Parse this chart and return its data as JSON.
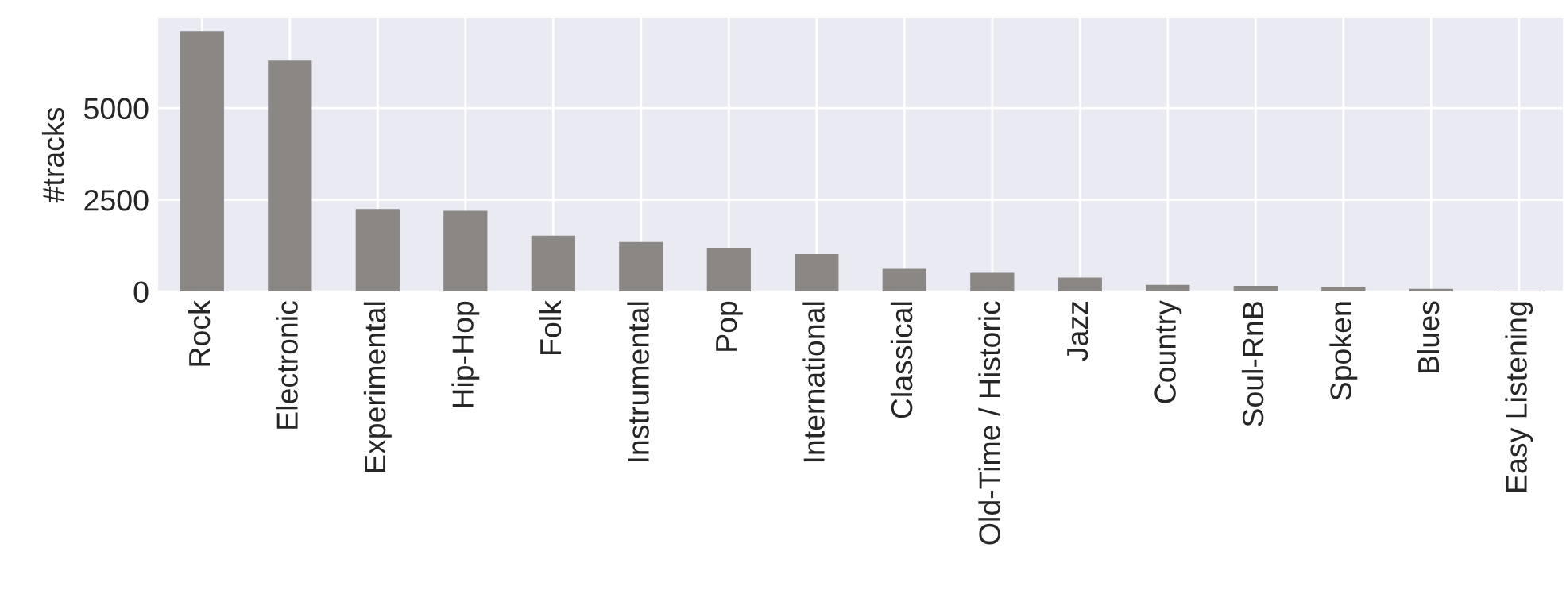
{
  "chart_data": {
    "type": "bar",
    "ylabel": "#tracks",
    "categories": [
      "Rock",
      "Electronic",
      "Experimental",
      "Hip-Hop",
      "Folk",
      "Instrumental",
      "Pop",
      "International",
      "Classical",
      "Old-Time / Historic",
      "Jazz",
      "Country",
      "Soul-RnB",
      "Spoken",
      "Blues",
      "Easy Listening"
    ],
    "values": [
      7100,
      6300,
      2250,
      2200,
      1520,
      1350,
      1190,
      1020,
      620,
      510,
      380,
      180,
      150,
      120,
      70,
      20
    ],
    "color": "#8a8784",
    "ylim": [
      0,
      7450
    ],
    "yticks": [
      0,
      2500,
      5000
    ],
    "grid": true
  }
}
